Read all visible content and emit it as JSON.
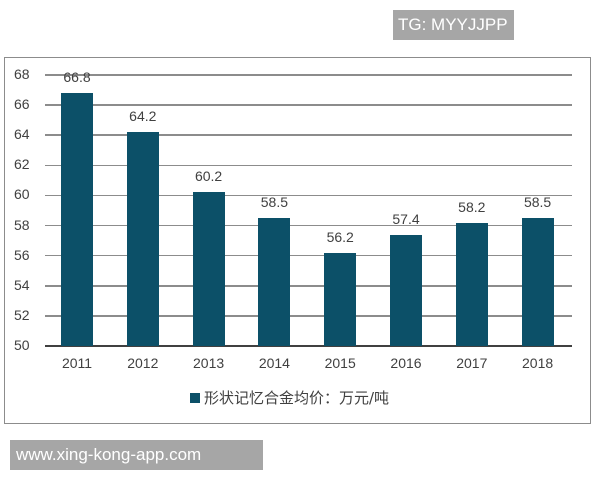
{
  "watermark_top": "TG: MYYJJPP",
  "watermark_bottom": "www.xing-kong-app.com",
  "colors": {
    "bar": "#0c5068",
    "grid": "#8c8c8c",
    "text": "#404040",
    "badge": "#a6a6a6"
  },
  "legend": {
    "label": "形状记忆合金均价：万元/吨"
  },
  "y_ticks": [
    "68",
    "66",
    "64",
    "62",
    "60",
    "58",
    "56",
    "54",
    "52",
    "50"
  ],
  "bars": [
    {
      "year": "2011",
      "value": "66.8"
    },
    {
      "year": "2012",
      "value": "64.2"
    },
    {
      "year": "2013",
      "value": "60.2"
    },
    {
      "year": "2014",
      "value": "58.5"
    },
    {
      "year": "2015",
      "value": "56.2"
    },
    {
      "year": "2016",
      "value": "57.4"
    },
    {
      "year": "2017",
      "value": "58.2"
    },
    {
      "year": "2018",
      "value": "58.5"
    }
  ],
  "chart_data": {
    "type": "bar",
    "title": "",
    "categories": [
      "2011",
      "2012",
      "2013",
      "2014",
      "2015",
      "2016",
      "2017",
      "2018"
    ],
    "series": [
      {
        "name": "形状记忆合金均价：万元/吨",
        "values": [
          66.8,
          64.2,
          60.2,
          58.5,
          56.2,
          57.4,
          58.2,
          58.5
        ]
      }
    ],
    "xlabel": "",
    "ylabel": "",
    "ylim": [
      50,
      68
    ],
    "yticks": [
      50,
      52,
      54,
      56,
      58,
      60,
      62,
      64,
      66,
      68
    ],
    "grid": true,
    "legend_position": "bottom",
    "data_labels": true
  }
}
